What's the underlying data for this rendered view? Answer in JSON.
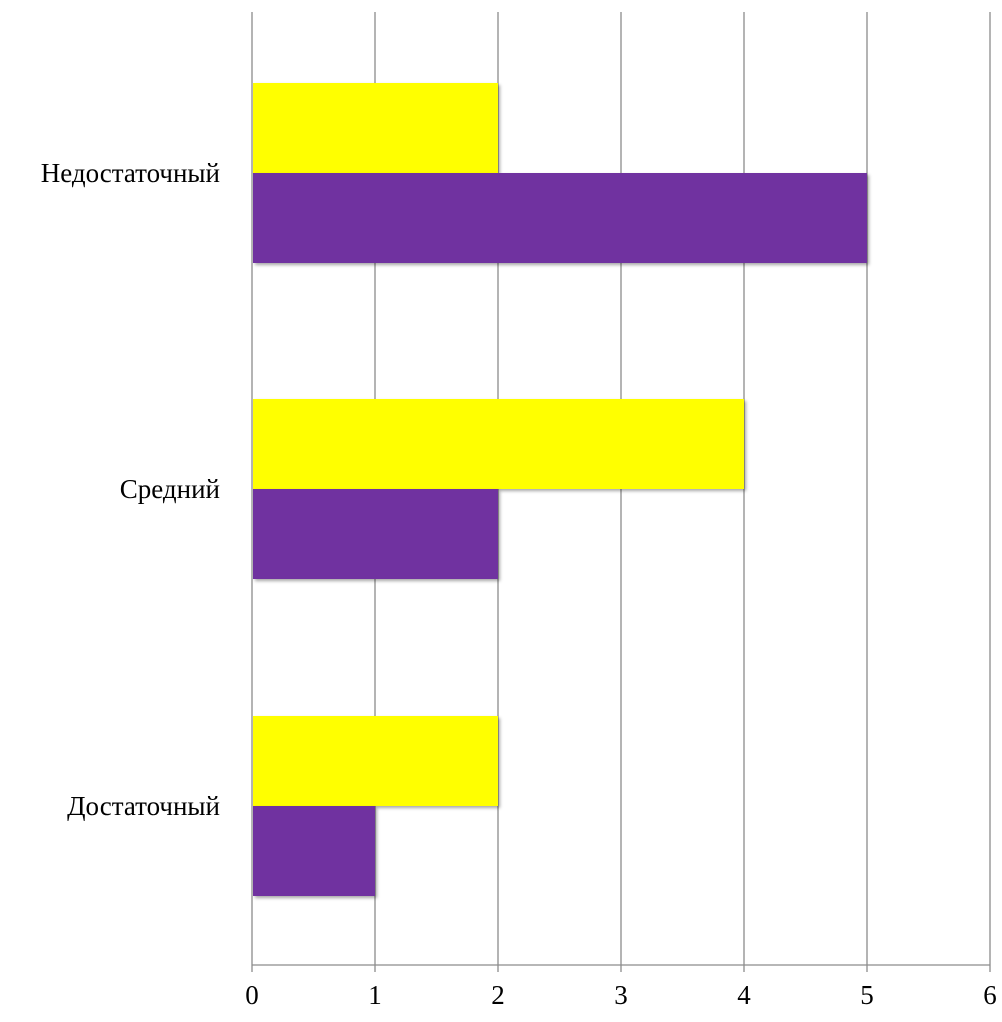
{
  "chart_data": {
    "type": "bar",
    "orientation": "horizontal",
    "categories": [
      "Недостаточный",
      "Средний",
      "Достаточный"
    ],
    "series": [
      {
        "values": [
          2,
          4,
          2
        ],
        "color": "#ffff00"
      },
      {
        "values": [
          5,
          2,
          1
        ],
        "color": "#7030a0"
      }
    ],
    "xlim": [
      0,
      6
    ],
    "x_ticks": [
      "0",
      "1",
      "2",
      "3",
      "4",
      "5",
      "6"
    ],
    "grid": "vertical",
    "legend": "none"
  }
}
